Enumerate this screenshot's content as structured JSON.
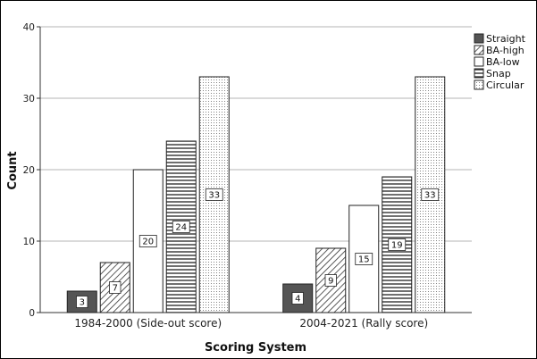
{
  "chart_data": {
    "type": "bar",
    "title": "",
    "xlabel": "Scoring System",
    "ylabel": "Count",
    "ylim": [
      0,
      40
    ],
    "yticks": [
      0,
      10,
      20,
      30,
      40
    ],
    "grid": "horizontal",
    "legend_position": "top-right",
    "categories": [
      "1984-2000 (Side-out score)",
      "2004-2021 (Rally score)"
    ],
    "series": [
      {
        "name": "Straight",
        "values": [
          3,
          4
        ],
        "fill": "#555555",
        "pattern": "solid"
      },
      {
        "name": "BA-high",
        "values": [
          7,
          9
        ],
        "fill": "#ffffff",
        "pattern": "diagonal"
      },
      {
        "name": "BA-low",
        "values": [
          20,
          15
        ],
        "fill": "#ffffff",
        "pattern": "none"
      },
      {
        "name": "Snap",
        "values": [
          24,
          19
        ],
        "fill": "#ffffff",
        "pattern": "horizontal"
      },
      {
        "name": "Circular",
        "values": [
          33,
          33
        ],
        "fill": "#ffffff",
        "pattern": "dots"
      }
    ]
  }
}
